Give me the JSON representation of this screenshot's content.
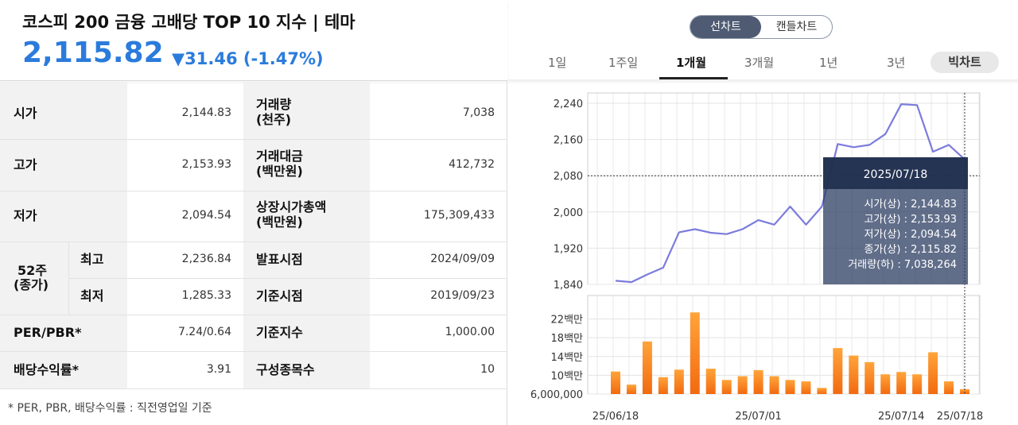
{
  "header": {
    "title": "코스피 200 금융 고배당 TOP 10 지수 | 테마",
    "price": "2,115.82",
    "change": "▼31.46 (-1.47%)"
  },
  "table": {
    "open": {
      "label": "시가",
      "value": "2,144.83"
    },
    "high": {
      "label": "고가",
      "value": "2,153.93"
    },
    "low": {
      "label": "저가",
      "value": "2,094.54"
    },
    "w52": {
      "label": "52주",
      "sublabel": "(종가)",
      "max_label": "최고",
      "max_value": "2,236.84",
      "min_label": "최저",
      "min_value": "1,285.33"
    },
    "per": {
      "label": "PER/PBR*",
      "value": "7.24/0.64"
    },
    "div": {
      "label": "배당수익률*",
      "value": "3.91"
    },
    "vol": {
      "label": "거래량",
      "sublabel": "(천주)",
      "value": "7,038"
    },
    "amt": {
      "label": "거래대금",
      "sublabel": "(백만원)",
      "value": "412,732"
    },
    "cap": {
      "label": "상장시가총액",
      "sublabel": "(백만원)",
      "value": "175,309,433"
    },
    "pub": {
      "label": "발표시점",
      "value": "2024/09/09"
    },
    "base": {
      "label": "기준시점",
      "value": "2019/09/23"
    },
    "baseidx": {
      "label": "기준지수",
      "value": "1,000.00"
    },
    "cnt": {
      "label": "구성종목수",
      "value": "10"
    }
  },
  "footnote": "* PER, PBR, 배당수익률 : 직전영업일 기준",
  "chart_toggle": {
    "line": "선차트",
    "candle": "캔들차트"
  },
  "period_tabs": [
    "1일",
    "1주일",
    "1개월",
    "3개월",
    "1년",
    "3년"
  ],
  "active_period": "1개월",
  "big_chart_label": "빅차트",
  "colors": {
    "accent": "#2b7bdc",
    "line": "#7b7bdd",
    "bar_top": "#ff9a2e",
    "bar_bottom": "#f26a10",
    "tooltip": "#2c3e63"
  },
  "chart_data": [
    {
      "type": "line",
      "ylim": [
        1840,
        2240
      ],
      "yticks": [
        "2,240",
        "2,160",
        "2,080",
        "2,000",
        "1,920",
        "1,840"
      ],
      "ytick_values": [
        2240,
        2160,
        2080,
        2000,
        1920,
        1840
      ],
      "values": [
        1848,
        1845,
        1862,
        1877,
        1955,
        1962,
        1954,
        1951,
        1962,
        1982,
        1972,
        2012,
        1972,
        2012,
        2150,
        2143,
        2148,
        2172,
        2238,
        2236,
        2133,
        2148,
        2116
      ],
      "grid": true
    },
    {
      "type": "bar",
      "yticks": [
        "22백만",
        "18백만",
        "14백만",
        "10백만",
        "6,000,000"
      ],
      "ytick_values": [
        22000000,
        18000000,
        14000000,
        10000000,
        6000000
      ],
      "ylim": [
        6000000,
        27000000
      ],
      "values": [
        10800000,
        8000000,
        17200000,
        9600000,
        11200000,
        23400000,
        11400000,
        9000000,
        9800000,
        11100000,
        9800000,
        9000000,
        8700000,
        7300000,
        15800000,
        14200000,
        12800000,
        10200000,
        10700000,
        10200000,
        14900000,
        8700000,
        7038264
      ],
      "grid": true
    }
  ],
  "xticks": [
    "25/06/18",
    "25/07/01",
    "25/07/14",
    "25/07/18"
  ],
  "tooltip": {
    "date": "2025/07/18",
    "lines": [
      "시가(상) : 2,144.83",
      "고가(상) : 2,153.93",
      "저가(상) : 2,094.54",
      "종가(상) : 2,115.82",
      "거래량(하) : 7,038,264"
    ]
  }
}
